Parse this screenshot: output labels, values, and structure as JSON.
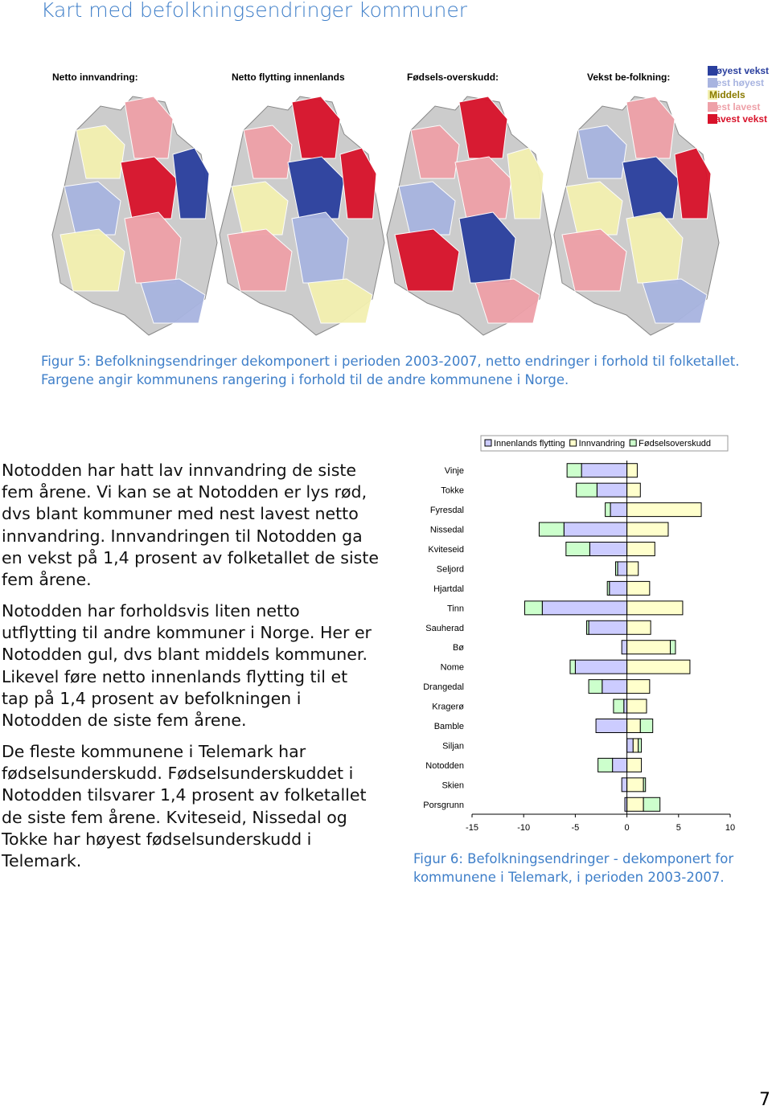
{
  "title": "Kart med befolkningsendringer kommuner",
  "map": {
    "panels": [
      "Netto innvandring:",
      "Netto flytting innenlands",
      "Fødsels-overskudd:",
      "Vekst be-folkning:"
    ],
    "legend": [
      {
        "label": "Høyest vekst",
        "color": "#2a3f9e"
      },
      {
        "label": "Nest høyest",
        "color": "#a8b4e0"
      },
      {
        "label": "Middels",
        "color": "#f3f0b0"
      },
      {
        "label": "Nest lavest",
        "color": "#eea0a8"
      },
      {
        "label": "Lavest vekst",
        "color": "#d8122a"
      }
    ]
  },
  "figure5_caption": "Figur 5: Befolkningsendringer dekomponert i perioden 2003-2007, netto endringer i forhold til folketallet. Fargene angir kommunens rangering i forhold til de andre kommunene i Norge.",
  "paragraphs": [
    "Notodden har hatt lav innvandring de siste fem årene. Vi kan se at Notodden er lys rød, dvs blant kommuner med nest lavest netto innvandring. Innvandringen til Notodden ga en vekst på 1,4 prosent av folketallet de siste fem årene.",
    "Notodden har forholdsvis liten netto utflytting til andre kommuner i Norge. Her er Notodden gul, dvs blant middels kommuner. Likevel føre netto innenlands flytting til et tap på 1,4 prosent av befolkningen i Notodden de siste fem årene.",
    "De fleste kommunene i Telemark har fødselsunderskudd. Fødselsunderskuddet i Notodden tilsvarer 1,4 prosent av folketallet de siste fem årene. Kviteseid, Nissedal og Tokke har høyest fødselsunderskudd i Telemark."
  ],
  "chart_data": {
    "type": "stacked-bar-horizontal",
    "categories": [
      "Vinje",
      "Tokke",
      "Fyresdal",
      "Nissedal",
      "Kviteseid",
      "Seljord",
      "Hjartdal",
      "Tinn",
      "Sauherad",
      "Bø",
      "Nome",
      "Drangedal",
      "Kragerø",
      "Bamble",
      "Siljan",
      "Notodden",
      "Skien",
      "Porsgrunn"
    ],
    "series": [
      {
        "name": "Innenlands flytting",
        "color": "#ccccff",
        "values": [
          -4.4,
          -2.9,
          -1.6,
          -6.1,
          -3.6,
          -0.9,
          -1.7,
          -8.2,
          -3.7,
          -0.5,
          -5.0,
          -2.4,
          -0.3,
          -3.0,
          0.6,
          -1.4,
          -0.5,
          -0.2
        ]
      },
      {
        "name": "Innvandring",
        "color": "#ffffcc",
        "values": [
          1.0,
          1.3,
          7.2,
          4.0,
          2.7,
          1.1,
          2.2,
          5.4,
          2.3,
          4.2,
          6.1,
          2.2,
          1.9,
          1.3,
          0.5,
          1.4,
          1.6,
          1.6
        ]
      },
      {
        "name": "Fødselsoverskudd",
        "color": "#ccffcc",
        "values": [
          -1.4,
          -2.0,
          -0.5,
          -2.4,
          -2.3,
          -0.2,
          -0.2,
          -1.7,
          -0.2,
          0.5,
          -0.5,
          -1.3,
          -1.0,
          1.2,
          0.3,
          -1.4,
          0.2,
          1.6
        ]
      }
    ],
    "xlim": [
      -15,
      10
    ],
    "xticks": [
      -15,
      -10,
      -5,
      0,
      5,
      10
    ]
  },
  "figure6_caption": "Figur 6: Befolkningsendringer - dekomponert for kommunene i Telemark, i perioden 2003-2007.",
  "page_number": "7"
}
